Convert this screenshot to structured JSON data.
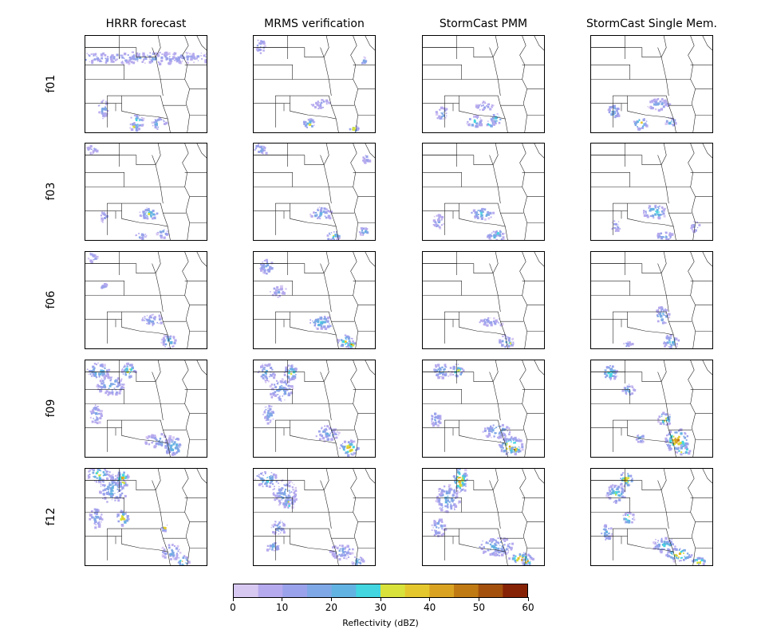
{
  "chart_data": {
    "type": "heatmap",
    "columns": [
      "HRRR forecast",
      "MRMS verification",
      "StormCast PMM",
      "StormCast Single Mem."
    ],
    "rows": [
      "f01",
      "f03",
      "f06",
      "f09",
      "f12"
    ],
    "colorbar": {
      "label": "Reflectivity (dBZ)",
      "ticks": [
        "0",
        "10",
        "20",
        "30",
        "40",
        "50",
        "60"
      ],
      "range": [
        0,
        60
      ],
      "bin_width": 5,
      "colors": [
        "#d7c8f2",
        "#b6aaee",
        "#9aa2ec",
        "#7fa8e6",
        "#62b3e2",
        "#43d6e0",
        "#d8e23a",
        "#e4c72d",
        "#d9a321",
        "#c07a14",
        "#a3500c",
        "#862206"
      ]
    },
    "panels": [
      [
        {
          "blobs": [
            [
              0.5,
              0.22,
              0.78,
              0.06,
              2
            ],
            [
              0.14,
              0.75,
              0.04,
              0.1,
              3
            ],
            [
              0.42,
              0.88,
              0.06,
              0.07,
              7
            ],
            [
              0.6,
              0.9,
              0.06,
              0.06,
              5
            ],
            [
              0.4,
              0.93,
              0.04,
              0.04,
              9
            ]
          ]
        },
        {
          "blobs": [
            [
              0.05,
              0.1,
              0.04,
              0.08,
              2
            ],
            [
              0.55,
              0.7,
              0.08,
              0.05,
              2
            ],
            [
              0.45,
              0.9,
              0.05,
              0.05,
              6
            ],
            [
              0.82,
              0.95,
              0.04,
              0.03,
              7
            ],
            [
              0.9,
              0.25,
              0.03,
              0.04,
              3
            ]
          ]
        },
        {
          "blobs": [
            [
              0.15,
              0.8,
              0.05,
              0.08,
              3
            ],
            [
              0.5,
              0.72,
              0.08,
              0.05,
              2
            ],
            [
              0.42,
              0.88,
              0.07,
              0.06,
              5
            ],
            [
              0.6,
              0.85,
              0.05,
              0.05,
              7
            ],
            [
              0.55,
              0.9,
              0.03,
              0.03,
              9
            ]
          ]
        },
        {
          "blobs": [
            [
              0.18,
              0.78,
              0.05,
              0.09,
              4
            ],
            [
              0.55,
              0.7,
              0.1,
              0.06,
              3
            ],
            [
              0.4,
              0.9,
              0.06,
              0.06,
              8
            ],
            [
              0.65,
              0.88,
              0.05,
              0.04,
              5
            ]
          ]
        }
      ],
      [
        {
          "blobs": [
            [
              0.05,
              0.05,
              0.05,
              0.04,
              2
            ],
            [
              0.15,
              0.75,
              0.03,
              0.07,
              2
            ],
            [
              0.52,
              0.72,
              0.08,
              0.06,
              6
            ],
            [
              0.63,
              0.92,
              0.05,
              0.05,
              4
            ],
            [
              0.45,
              0.95,
              0.05,
              0.03,
              3
            ]
          ]
        },
        {
          "blobs": [
            [
              0.05,
              0.05,
              0.06,
              0.06,
              3
            ],
            [
              0.55,
              0.72,
              0.09,
              0.07,
              4
            ],
            [
              0.65,
              0.95,
              0.06,
              0.05,
              6
            ],
            [
              0.9,
              0.9,
              0.04,
              0.04,
              5
            ],
            [
              0.92,
              0.15,
              0.03,
              0.04,
              2
            ]
          ]
        },
        {
          "blobs": [
            [
              0.12,
              0.8,
              0.05,
              0.07,
              2
            ],
            [
              0.48,
              0.72,
              0.1,
              0.06,
              5
            ],
            [
              0.6,
              0.95,
              0.08,
              0.06,
              4
            ],
            [
              0.62,
              0.92,
              0.03,
              0.03,
              9
            ]
          ]
        },
        {
          "blobs": [
            [
              0.2,
              0.85,
              0.04,
              0.06,
              2
            ],
            [
              0.52,
              0.7,
              0.1,
              0.07,
              6
            ],
            [
              0.6,
              0.95,
              0.07,
              0.05,
              4
            ],
            [
              0.85,
              0.85,
              0.04,
              0.05,
              3
            ]
          ]
        }
      ],
      [
        {
          "blobs": [
            [
              0.05,
              0.05,
              0.04,
              0.05,
              2
            ],
            [
              0.15,
              0.35,
              0.03,
              0.04,
              2
            ],
            [
              0.55,
              0.7,
              0.1,
              0.06,
              3
            ],
            [
              0.68,
              0.92,
              0.06,
              0.08,
              5
            ]
          ]
        },
        {
          "blobs": [
            [
              0.1,
              0.15,
              0.06,
              0.08,
              3
            ],
            [
              0.2,
              0.4,
              0.07,
              0.06,
              2
            ],
            [
              0.55,
              0.72,
              0.1,
              0.07,
              5
            ],
            [
              0.75,
              0.92,
              0.07,
              0.07,
              7
            ],
            [
              0.8,
              0.95,
              0.03,
              0.03,
              10
            ]
          ]
        },
        {
          "blobs": [
            [
              0.55,
              0.72,
              0.1,
              0.05,
              2
            ],
            [
              0.68,
              0.92,
              0.06,
              0.07,
              4
            ],
            [
              0.72,
              0.95,
              0.03,
              0.03,
              9
            ]
          ]
        },
        {
          "blobs": [
            [
              0.58,
              0.65,
              0.06,
              0.1,
              4
            ],
            [
              0.65,
              0.92,
              0.07,
              0.07,
              5
            ],
            [
              0.3,
              0.95,
              0.04,
              0.03,
              2
            ]
          ]
        }
      ],
      [
        {
          "blobs": [
            [
              0.1,
              0.1,
              0.09,
              0.08,
              6
            ],
            [
              0.2,
              0.25,
              0.12,
              0.1,
              4
            ],
            [
              0.35,
              0.1,
              0.06,
              0.08,
              7
            ],
            [
              0.08,
              0.55,
              0.05,
              0.1,
              3
            ],
            [
              0.6,
              0.82,
              0.12,
              0.07,
              3
            ],
            [
              0.72,
              0.88,
              0.08,
              0.1,
              5
            ]
          ]
        },
        {
          "blobs": [
            [
              0.1,
              0.12,
              0.07,
              0.1,
              4
            ],
            [
              0.22,
              0.3,
              0.1,
              0.12,
              3
            ],
            [
              0.3,
              0.12,
              0.06,
              0.08,
              7
            ],
            [
              0.12,
              0.55,
              0.05,
              0.1,
              3
            ],
            [
              0.6,
              0.75,
              0.1,
              0.08,
              3
            ],
            [
              0.78,
              0.9,
              0.08,
              0.08,
              9
            ]
          ]
        },
        {
          "blobs": [
            [
              0.15,
              0.1,
              0.08,
              0.08,
              4
            ],
            [
              0.28,
              0.1,
              0.05,
              0.07,
              7
            ],
            [
              0.1,
              0.6,
              0.05,
              0.08,
              3
            ],
            [
              0.6,
              0.72,
              0.12,
              0.08,
              4
            ],
            [
              0.72,
              0.88,
              0.1,
              0.1,
              9
            ],
            [
              0.75,
              0.92,
              0.05,
              0.04,
              11
            ]
          ]
        },
        {
          "blobs": [
            [
              0.15,
              0.12,
              0.07,
              0.08,
              6
            ],
            [
              0.3,
              0.3,
              0.05,
              0.06,
              4
            ],
            [
              0.6,
              0.6,
              0.06,
              0.07,
              8
            ],
            [
              0.7,
              0.82,
              0.1,
              0.12,
              10
            ],
            [
              0.75,
              0.92,
              0.06,
              0.05,
              11
            ],
            [
              0.4,
              0.8,
              0.04,
              0.04,
              5
            ]
          ]
        }
      ],
      [
        {
          "blobs": [
            [
              0.1,
              0.05,
              0.1,
              0.08,
              7
            ],
            [
              0.22,
              0.2,
              0.12,
              0.15,
              4
            ],
            [
              0.3,
              0.1,
              0.05,
              0.1,
              10
            ],
            [
              0.3,
              0.5,
              0.05,
              0.08,
              8
            ],
            [
              0.08,
              0.5,
              0.06,
              0.1,
              3
            ],
            [
              0.7,
              0.85,
              0.08,
              0.08,
              4
            ],
            [
              0.8,
              0.95,
              0.05,
              0.06,
              9
            ],
            [
              0.65,
              0.6,
              0.03,
              0.03,
              8
            ]
          ]
        },
        {
          "blobs": [
            [
              0.1,
              0.1,
              0.1,
              0.08,
              5
            ],
            [
              0.25,
              0.25,
              0.1,
              0.15,
              3
            ],
            [
              0.28,
              0.35,
              0.04,
              0.06,
              8
            ],
            [
              0.2,
              0.6,
              0.06,
              0.08,
              3
            ],
            [
              0.15,
              0.8,
              0.06,
              0.05,
              4
            ],
            [
              0.72,
              0.85,
              0.1,
              0.08,
              3
            ],
            [
              0.85,
              0.95,
              0.05,
              0.05,
              5
            ]
          ]
        },
        {
          "blobs": [
            [
              0.3,
              0.1,
              0.06,
              0.15,
              9
            ],
            [
              0.2,
              0.3,
              0.1,
              0.15,
              4
            ],
            [
              0.12,
              0.6,
              0.06,
              0.1,
              3
            ],
            [
              0.6,
              0.8,
              0.15,
              0.1,
              4
            ],
            [
              0.8,
              0.92,
              0.1,
              0.06,
              9
            ],
            [
              0.85,
              0.95,
              0.04,
              0.04,
              11
            ]
          ]
        },
        {
          "blobs": [
            [
              0.28,
              0.1,
              0.06,
              0.08,
              8
            ],
            [
              0.2,
              0.25,
              0.08,
              0.1,
              6
            ],
            [
              0.3,
              0.5,
              0.05,
              0.06,
              8
            ],
            [
              0.12,
              0.65,
              0.05,
              0.08,
              4
            ],
            [
              0.6,
              0.78,
              0.1,
              0.08,
              5
            ],
            [
              0.72,
              0.88,
              0.12,
              0.07,
              9
            ],
            [
              0.88,
              0.95,
              0.06,
              0.04,
              10
            ]
          ]
        }
      ]
    ]
  }
}
